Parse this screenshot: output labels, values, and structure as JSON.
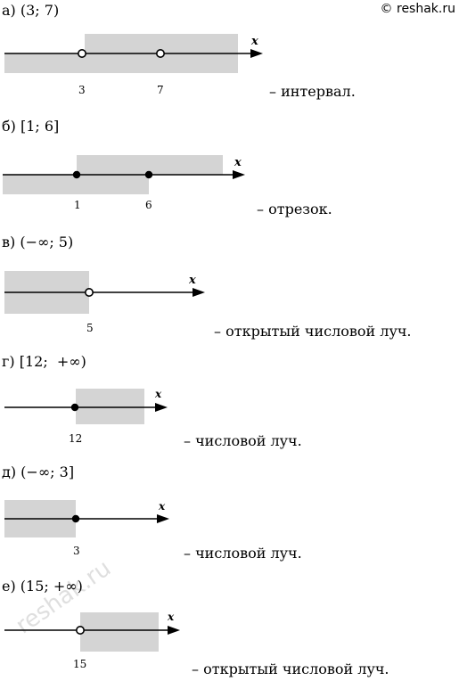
{
  "watermark": "© reshak.ru",
  "stamp_text": "reshak.ru",
  "axis_var": "x",
  "items": [
    {
      "label": "а) (3; 7)",
      "desc": "– интервал.",
      "ticks": [
        "3",
        "7"
      ],
      "points": [
        3,
        7
      ],
      "closed": [
        false,
        false
      ],
      "shade": "between"
    },
    {
      "label": "б) [1; 6]",
      "desc": "– отрезок.",
      "ticks": [
        "1",
        "6"
      ],
      "points": [
        1,
        6
      ],
      "closed": [
        true,
        true
      ],
      "shade": "between"
    },
    {
      "label": "в) (−∞; 5)",
      "desc": "– открытый числовой луч.",
      "ticks": [
        "5"
      ],
      "points": [
        5
      ],
      "closed": [
        false
      ],
      "shade": "left"
    },
    {
      "label": "г) [12;  +∞)",
      "desc": "– числовой луч.",
      "ticks": [
        "12"
      ],
      "points": [
        12
      ],
      "closed": [
        true
      ],
      "shade": "right"
    },
    {
      "label": "д) (−∞; 3]",
      "desc": "– числовой луч.",
      "ticks": [
        "3"
      ],
      "points": [
        3
      ],
      "closed": [
        true
      ],
      "shade": "left"
    },
    {
      "label": "е) (15; +∞)",
      "desc": "– открытый числовой луч.",
      "ticks": [
        "15"
      ],
      "points": [
        15
      ],
      "closed": [
        false
      ],
      "shade": "right"
    }
  ]
}
